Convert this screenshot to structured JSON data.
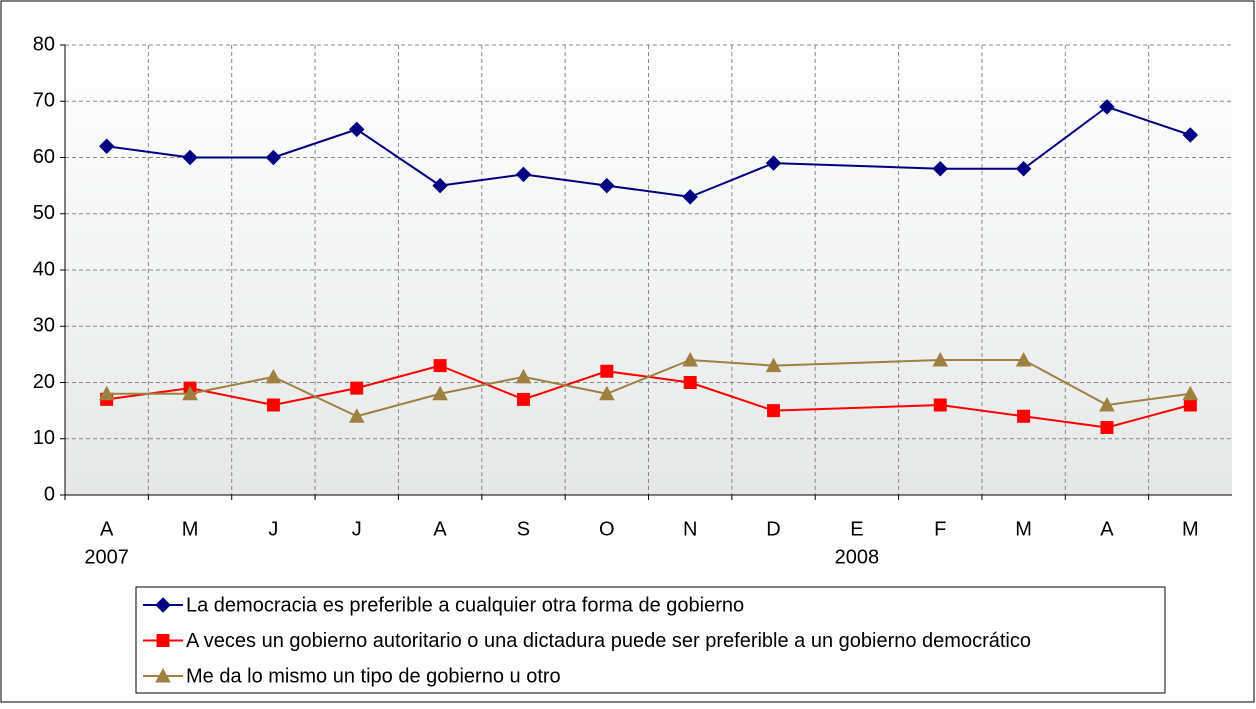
{
  "chart_data": {
    "type": "line",
    "categories": [
      "A",
      "M",
      "J",
      "J",
      "A",
      "S",
      "O",
      "N",
      "D",
      "E",
      "F",
      "M",
      "A",
      "M"
    ],
    "year_labels": [
      "2007",
      null,
      null,
      null,
      null,
      null,
      null,
      null,
      null,
      "2008",
      null,
      null,
      null,
      null
    ],
    "series": [
      {
        "name": "La democracia es preferible a cualquier otra forma de gobierno",
        "color": "#000080",
        "marker": "diamond",
        "values": [
          62,
          60,
          60,
          65,
          55,
          57,
          55,
          53,
          59,
          null,
          58,
          58,
          69,
          64
        ]
      },
      {
        "name": "A veces un gobierno autoritario o una dictadura puede ser preferible a un gobierno democrático",
        "color": "#ff0000",
        "marker": "square",
        "values": [
          17,
          19,
          16,
          19,
          23,
          17,
          22,
          20,
          15,
          null,
          16,
          14,
          12,
          16
        ]
      },
      {
        "name": "Me da lo mismo un tipo de gobierno u otro",
        "color": "#a08040",
        "marker": "triangle",
        "values": [
          18,
          18,
          21,
          14,
          18,
          21,
          18,
          24,
          23,
          null,
          24,
          24,
          16,
          18
        ]
      }
    ],
    "ylim": [
      0,
      80
    ],
    "yticks": [
      0,
      10,
      20,
      30,
      40,
      50,
      60,
      70,
      80
    ],
    "grid": true,
    "span_gaps": true,
    "legend": "bottom"
  }
}
